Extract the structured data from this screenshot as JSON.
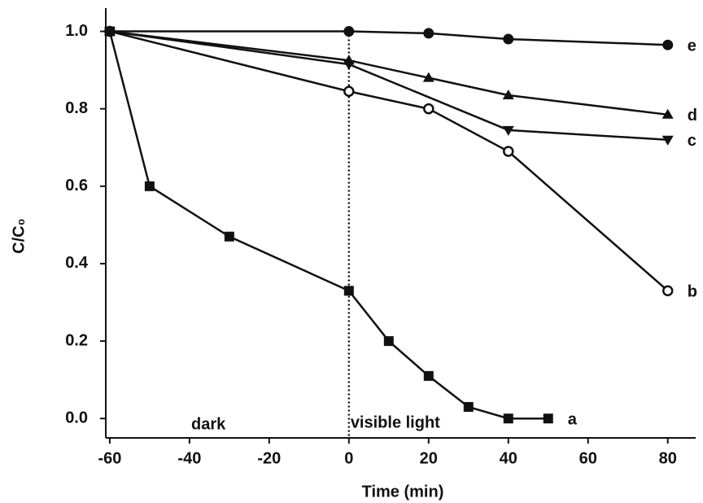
{
  "chart_data": {
    "type": "line",
    "x_label": "Time (min)",
    "y_label": "C/C₀",
    "annotations": [
      "dark",
      "visible light"
    ],
    "xlim": [
      -61,
      87
    ],
    "ylim": [
      -0.05,
      1.06
    ],
    "xticks": [
      -60,
      -40,
      -20,
      0,
      20,
      40,
      60,
      80
    ],
    "yticks": [
      {
        "value": 0,
        "label": "0.0"
      },
      0.2,
      0.4,
      0.6,
      0.8,
      {
        "value": 1,
        "label": "1.0"
      }
    ],
    "vline": 0,
    "series": [
      {
        "name": "a",
        "color": "#111111",
        "marker": "square",
        "x": [
          -60,
          -50,
          -30,
          0,
          10,
          20,
          30,
          40,
          50
        ],
        "values": [
          1.0,
          0.6,
          0.47,
          0.33,
          0.2,
          0.11,
          0.03,
          0.0,
          0.0
        ]
      },
      {
        "name": "b",
        "color": "#111111",
        "marker": "circle-open",
        "x": [
          -60,
          0,
          20,
          40,
          80
        ],
        "values": [
          1.0,
          0.845,
          0.8,
          0.69,
          0.33
        ]
      },
      {
        "name": "c",
        "color": "#111111",
        "marker": "triangle-down",
        "x": [
          -60,
          0,
          40,
          80
        ],
        "values": [
          1.0,
          0.915,
          0.745,
          0.72
        ]
      },
      {
        "name": "d",
        "color": "#111111",
        "marker": "triangle-up",
        "x": [
          -60,
          0,
          20,
          40,
          80
        ],
        "values": [
          1.0,
          0.925,
          0.88,
          0.835,
          0.785
        ]
      },
      {
        "name": "e",
        "color": "#111111",
        "marker": "circle",
        "x": [
          -60,
          0,
          20,
          40,
          80
        ],
        "values": [
          1.0,
          1.0,
          0.995,
          0.98,
          0.965
        ]
      }
    ]
  }
}
